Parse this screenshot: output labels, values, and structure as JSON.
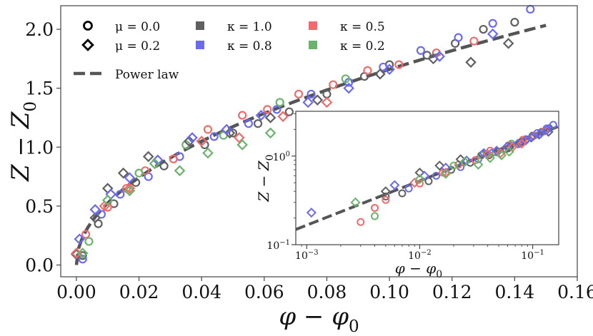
{
  "chart_data": [
    {
      "type": "scatter",
      "panel": "main",
      "xlabel": "φ − φ₀",
      "ylabel": "Z − Z₀",
      "xlim": [
        -0.005,
        0.16
      ],
      "ylim": [
        -0.1,
        2.2
      ],
      "x_ticks": [
        0.0,
        0.02,
        0.04,
        0.06,
        0.08,
        0.1,
        0.12,
        0.14,
        0.16
      ],
      "x_tick_labels": [
        "0.00",
        "0.02",
        "0.04",
        "0.06",
        "0.08",
        "0.10",
        "0.12",
        "0.14",
        "0.16"
      ],
      "y_ticks": [
        0.0,
        0.5,
        1.0,
        1.5,
        2.0
      ],
      "y_tick_labels": [
        "0.0",
        "0.5",
        "1.0",
        "1.5",
        "2.0"
      ],
      "legend": {
        "placement": "top-left",
        "entries": [
          {
            "marker": "circle",
            "label": "μ = 0.0"
          },
          {
            "marker": "diamond",
            "label": "μ = 0.2"
          },
          {
            "color_key": "k1.0",
            "label": "κ = 1.0"
          },
          {
            "color_key": "k0.8",
            "label": "κ = 0.8"
          },
          {
            "color_key": "k0.5",
            "label": "κ = 0.5"
          },
          {
            "color_key": "k0.2",
            "label": "κ = 0.2"
          },
          {
            "line": "dashed",
            "label": "Power law"
          }
        ]
      },
      "power_law": {
        "amplitude": 5.25,
        "exponent": 0.5
      },
      "series": [
        {
          "name": "μ=0.0, κ=1.0",
          "marker": "circle",
          "color_key": "k1.0",
          "x": [
            0.002,
            0.007,
            0.012,
            0.019,
            0.028,
            0.041,
            0.05,
            0.058,
            0.068,
            0.08,
            0.092,
            0.1,
            0.112,
            0.121,
            0.13,
            0.14
          ],
          "y": [
            0.08,
            0.35,
            0.52,
            0.7,
            0.84,
            1.02,
            1.12,
            1.2,
            1.3,
            1.45,
            1.6,
            1.7,
            1.78,
            1.88,
            2.0,
            2.06
          ]
        },
        {
          "name": "μ=0.0, κ=0.8",
          "marker": "circle",
          "color_key": "k0.8",
          "x": [
            0.002,
            0.008,
            0.014,
            0.023,
            0.033,
            0.044,
            0.055,
            0.064,
            0.075,
            0.087,
            0.098,
            0.11,
            0.122,
            0.133,
            0.145
          ],
          "y": [
            0.05,
            0.43,
            0.6,
            0.75,
            0.92,
            1.09,
            1.2,
            1.32,
            1.45,
            1.55,
            1.68,
            1.82,
            1.93,
            2.05,
            2.17
          ]
        },
        {
          "name": "μ=0.0, κ=0.5",
          "marker": "circle",
          "color_key": "k0.5",
          "x": [
            0.003,
            0.01,
            0.016,
            0.022,
            0.031,
            0.042,
            0.053,
            0.061,
            0.071,
            0.082,
            0.093,
            0.103,
            0.115,
            0.127
          ],
          "y": [
            0.26,
            0.49,
            0.65,
            0.8,
            0.9,
            1.15,
            1.27,
            1.32,
            1.45,
            1.53,
            1.65,
            1.7,
            1.8,
            1.9
          ]
        },
        {
          "name": "μ=0.0, κ=0.2",
          "marker": "circle",
          "color_key": "k0.2",
          "x": [
            0.004,
            0.02,
            0.035,
            0.047,
            0.065,
            0.086
          ],
          "y": [
            0.2,
            0.78,
            1.02,
            1.1,
            1.38,
            1.58
          ]
        },
        {
          "name": "μ=0.2, κ=1.0",
          "marker": "diamond",
          "color_key": "k1.0",
          "x": [
            0.0,
            0.006,
            0.01,
            0.015,
            0.023,
            0.036,
            0.049,
            0.062,
            0.077,
            0.097,
            0.114,
            0.126,
            0.138
          ],
          "y": [
            0.09,
            0.4,
            0.65,
            0.78,
            0.92,
            1.05,
            1.12,
            1.25,
            1.4,
            1.62,
            1.75,
            1.72,
            1.88
          ]
        },
        {
          "name": "μ=0.2, κ=0.8",
          "marker": "diamond",
          "color_key": "k0.8",
          "x": [
            0.001,
            0.006,
            0.011,
            0.017,
            0.026,
            0.037,
            0.048,
            0.059,
            0.074,
            0.087,
            0.1,
            0.116,
            0.133
          ],
          "y": [
            0.22,
            0.47,
            0.6,
            0.74,
            0.89,
            1.08,
            1.15,
            1.27,
            1.38,
            1.5,
            1.66,
            1.77,
            1.96
          ]
        },
        {
          "name": "μ=0.2, κ=0.5",
          "marker": "diamond",
          "color_key": "k0.5",
          "x": [
            0.0,
            0.009,
            0.017,
            0.04,
            0.052,
            0.066,
            0.08
          ],
          "y": [
            0.1,
            0.5,
            0.65,
            1.05,
            1.08,
            1.26,
            1.38
          ]
        },
        {
          "name": "μ=0.2, κ=0.2",
          "marker": "diamond",
          "color_key": "k0.2",
          "x": [
            0.002,
            0.01,
            0.017,
            0.025,
            0.033,
            0.042,
            0.053,
            0.062
          ],
          "y": [
            0.1,
            0.55,
            0.63,
            0.86,
            0.8,
            0.95,
            1.02,
            1.12
          ]
        }
      ]
    },
    {
      "type": "scatter",
      "panel": "inset",
      "scale": "log-log",
      "xlabel": "φ − φ₀",
      "ylabel": "Z − Z₀",
      "xlim": [
        0.0008,
        0.17
      ],
      "ylim": [
        0.1,
        3.2
      ],
      "x_ticks": [
        0.001,
        0.01,
        0.1
      ],
      "x_tick_labels": [
        {
          "base": "10",
          "exp": "−3"
        },
        {
          "base": "10",
          "exp": "−2"
        },
        {
          "base": "10",
          "exp": "−1"
        }
      ],
      "y_ticks": [
        0.1,
        1.0
      ],
      "y_tick_labels": [
        {
          "base": "10",
          "exp": "−1"
        },
        {
          "base": "10",
          "exp": "0"
        }
      ],
      "power_law": {
        "amplitude": 5.25,
        "exponent": 0.5
      },
      "series": [
        {
          "name": "μ=0.0, κ=1.0",
          "marker": "circle",
          "color_key": "k1.0",
          "x": [
            0.005,
            0.007,
            0.012,
            0.019,
            0.028,
            0.041,
            0.058,
            0.08,
            0.1,
            0.121,
            0.14
          ],
          "y": [
            0.35,
            0.38,
            0.52,
            0.7,
            0.84,
            1.02,
            1.2,
            1.45,
            1.7,
            1.88,
            2.06
          ]
        },
        {
          "name": "μ=0.0, κ=0.8",
          "marker": "circle",
          "color_key": "k0.8",
          "x": [
            0.008,
            0.014,
            0.023,
            0.033,
            0.044,
            0.064,
            0.087,
            0.11,
            0.133,
            0.152
          ],
          "y": [
            0.43,
            0.6,
            0.75,
            0.92,
            1.09,
            1.32,
            1.55,
            1.82,
            2.05,
            2.25
          ]
        },
        {
          "name": "μ=0.0, κ=0.5",
          "marker": "circle",
          "color_key": "k0.5",
          "x": [
            0.003,
            0.004,
            0.005,
            0.01,
            0.016,
            0.022,
            0.031,
            0.042,
            0.061,
            0.082,
            0.103,
            0.127
          ],
          "y": [
            0.18,
            0.26,
            0.32,
            0.49,
            0.65,
            0.8,
            0.9,
            1.15,
            1.32,
            1.53,
            1.7,
            1.9
          ]
        },
        {
          "name": "μ=0.0, κ=0.2",
          "marker": "circle",
          "color_key": "k0.2",
          "x": [
            0.004,
            0.02,
            0.035,
            0.047,
            0.065
          ],
          "y": [
            0.21,
            0.78,
            1.02,
            1.1,
            1.38
          ]
        },
        {
          "name": "μ=0.2, κ=1.0",
          "marker": "diamond",
          "color_key": "k1.0",
          "x": [
            0.005,
            0.01,
            0.015,
            0.023,
            0.036,
            0.049,
            0.062,
            0.077,
            0.097,
            0.114,
            0.138
          ],
          "y": [
            0.4,
            0.65,
            0.78,
            0.92,
            1.05,
            1.12,
            1.25,
            1.4,
            1.62,
            1.75,
            1.88
          ]
        },
        {
          "name": "μ=0.2, κ=0.8",
          "marker": "diamond",
          "color_key": "k0.8",
          "x": [
            0.0011,
            0.006,
            0.011,
            0.017,
            0.026,
            0.037,
            0.048,
            0.059,
            0.074,
            0.087,
            0.1,
            0.116,
            0.133
          ],
          "y": [
            0.23,
            0.47,
            0.6,
            0.74,
            0.89,
            1.08,
            1.15,
            1.27,
            1.38,
            1.5,
            1.66,
            1.77,
            1.96
          ]
        },
        {
          "name": "μ=0.2, κ=0.5",
          "marker": "diamond",
          "color_key": "k0.5",
          "x": [
            0.009,
            0.017,
            0.04,
            0.052,
            0.066,
            0.08
          ],
          "y": [
            0.5,
            0.65,
            1.05,
            1.08,
            1.26,
            1.38
          ]
        },
        {
          "name": "μ=0.2, κ=0.2",
          "marker": "diamond",
          "color_key": "k0.2",
          "x": [
            0.0027,
            0.01,
            0.017,
            0.025,
            0.033,
            0.042,
            0.053,
            0.062
          ],
          "y": [
            0.3,
            0.55,
            0.63,
            0.86,
            0.8,
            0.95,
            1.02,
            1.12
          ]
        }
      ]
    }
  ],
  "colors": {
    "k1.0": "#606060",
    "k0.8": "#6b6bf0",
    "k0.5": "#f06b6b",
    "k0.2": "#6bb36b",
    "power_law": "#555555",
    "axis": "#444444"
  }
}
